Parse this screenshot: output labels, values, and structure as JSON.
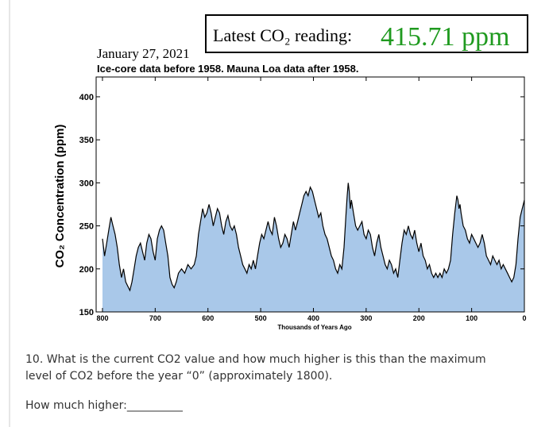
{
  "chart_data": {
    "type": "area",
    "title": "Latest CO₂ reading:",
    "reading": "415.71 ppm",
    "date": "January 27, 2021",
    "subtitle": "Ice-core data before 1958. Mauna Loa data after 1958.",
    "x_label": "Thousands of Years Ago",
    "y_label": "CO₂ Concentration (ppm)",
    "x": [
      800,
      796,
      792,
      788,
      784,
      780,
      776,
      772,
      768,
      764,
      760,
      756,
      752,
      748,
      744,
      740,
      736,
      732,
      728,
      724,
      720,
      716,
      712,
      708,
      704,
      700,
      696,
      692,
      688,
      684,
      680,
      676,
      672,
      668,
      664,
      660,
      656,
      650,
      644,
      638,
      632,
      626,
      622,
      618,
      614,
      610,
      606,
      602,
      598,
      594,
      590,
      586,
      582,
      578,
      574,
      570,
      566,
      562,
      558,
      554,
      550,
      546,
      542,
      538,
      534,
      530,
      526,
      522,
      518,
      514,
      510,
      506,
      502,
      498,
      494,
      490,
      486,
      482,
      478,
      474,
      470,
      466,
      462,
      458,
      454,
      450,
      446,
      442,
      438,
      434,
      430,
      426,
      422,
      418,
      414,
      410,
      406,
      402,
      398,
      394,
      390,
      386,
      382,
      378,
      374,
      370,
      366,
      362,
      358,
      354,
      350,
      346,
      342,
      338,
      336,
      334,
      332,
      330,
      328,
      324,
      320,
      316,
      312,
      308,
      304,
      300,
      296,
      292,
      288,
      284,
      280,
      276,
      272,
      268,
      264,
      260,
      256,
      252,
      248,
      244,
      240,
      236,
      232,
      228,
      224,
      220,
      216,
      212,
      208,
      204,
      200,
      196,
      192,
      188,
      184,
      180,
      176,
      172,
      168,
      164,
      160,
      156,
      152,
      148,
      144,
      140,
      136,
      132,
      128,
      126,
      124,
      122,
      120,
      116,
      112,
      108,
      104,
      100,
      96,
      92,
      88,
      84,
      80,
      76,
      72,
      68,
      64,
      60,
      56,
      52,
      48,
      44,
      40,
      36,
      32,
      28,
      24,
      20,
      16,
      12,
      8,
      6,
      4,
      2,
      0
    ],
    "values": [
      235,
      215,
      230,
      245,
      260,
      250,
      240,
      225,
      205,
      190,
      200,
      185,
      180,
      175,
      185,
      200,
      215,
      225,
      230,
      220,
      210,
      230,
      240,
      235,
      220,
      210,
      235,
      245,
      250,
      245,
      230,
      215,
      190,
      182,
      178,
      185,
      195,
      200,
      195,
      205,
      200,
      205,
      215,
      240,
      255,
      270,
      260,
      265,
      275,
      265,
      250,
      260,
      270,
      265,
      250,
      240,
      255,
      262,
      250,
      245,
      250,
      240,
      225,
      215,
      205,
      200,
      195,
      205,
      200,
      210,
      200,
      215,
      230,
      240,
      235,
      245,
      255,
      245,
      240,
      260,
      250,
      235,
      225,
      230,
      240,
      235,
      225,
      240,
      255,
      245,
      255,
      265,
      275,
      285,
      290,
      285,
      295,
      290,
      280,
      270,
      260,
      265,
      250,
      240,
      235,
      225,
      215,
      210,
      200,
      195,
      205,
      200,
      225,
      265,
      285,
      300,
      290,
      270,
      280,
      265,
      250,
      245,
      250,
      255,
      240,
      235,
      245,
      240,
      225,
      215,
      230,
      240,
      225,
      215,
      205,
      200,
      210,
      205,
      195,
      200,
      190,
      210,
      230,
      245,
      240,
      250,
      240,
      235,
      245,
      230,
      220,
      230,
      215,
      210,
      200,
      205,
      195,
      190,
      195,
      190,
      195,
      190,
      200,
      195,
      200,
      210,
      240,
      265,
      285,
      280,
      270,
      275,
      265,
      250,
      245,
      235,
      230,
      240,
      235,
      230,
      225,
      230,
      240,
      230,
      215,
      210,
      205,
      215,
      210,
      205,
      210,
      200,
      205,
      200,
      195,
      190,
      185,
      190,
      205,
      235,
      260,
      265,
      270,
      275,
      280
    ],
    "color": "#a9c8e9",
    "line_color": "#000000",
    "xlim": [
      812,
      0
    ],
    "xticks": [
      800,
      700,
      600,
      500,
      400,
      300,
      200,
      100,
      0
    ],
    "ylim": [
      150,
      423
    ],
    "yticks": [
      150,
      200,
      250,
      300,
      350,
      400
    ]
  },
  "question": {
    "text_1": "10. What is the current CO2 value and how much higher is this than the maximum",
    "text_2": "level of CO2 before the year “0” (approximately 1800).",
    "prompt": "How much higher:__________"
  }
}
